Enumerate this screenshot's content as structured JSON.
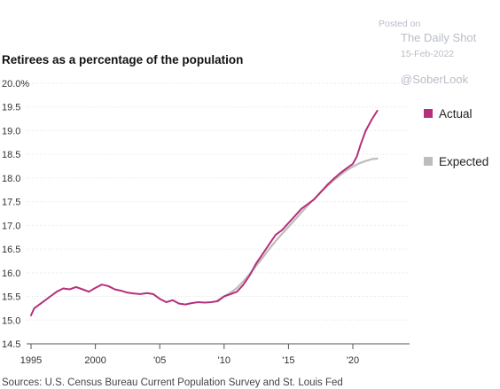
{
  "watermark": {
    "posted_on": "Posted on",
    "site": "The Daily Shot",
    "date": "15-Feb-2022",
    "handle": "@SoberLook"
  },
  "source": "Sources: U.S. Census Bureau Current Population Survey and St. Louis Fed",
  "colors": {
    "actual": "#b5307b",
    "expected": "#bdbdbd",
    "grid": "#e2e2e2"
  },
  "chart_data": {
    "type": "line",
    "title": "Retirees as a percentage of the population",
    "xlabel": "",
    "ylabel": "",
    "xlim": [
      1995,
      2022
    ],
    "ylim": [
      14.5,
      20.0
    ],
    "y_ticks": [
      {
        "v": 20.0,
        "label": "20.0%"
      },
      {
        "v": 19.5,
        "label": "19.5"
      },
      {
        "v": 19.0,
        "label": "19.0"
      },
      {
        "v": 18.5,
        "label": "18.5"
      },
      {
        "v": 18.0,
        "label": "18.0"
      },
      {
        "v": 17.5,
        "label": "17.5"
      },
      {
        "v": 17.0,
        "label": "17.0"
      },
      {
        "v": 16.5,
        "label": "16.5"
      },
      {
        "v": 16.0,
        "label": "16.0"
      },
      {
        "v": 15.5,
        "label": "15.5"
      },
      {
        "v": 15.0,
        "label": "15.0"
      },
      {
        "v": 14.5,
        "label": "14.5"
      }
    ],
    "x_ticks": [
      {
        "v": 1995,
        "label": "1995"
      },
      {
        "v": 2000,
        "label": "2000"
      },
      {
        "v": 2005,
        "label": "'05"
      },
      {
        "v": 2010,
        "label": "'10"
      },
      {
        "v": 2015,
        "label": "'15"
      },
      {
        "v": 2020,
        "label": "'20"
      }
    ],
    "grid": true,
    "legend": "right",
    "series": [
      {
        "name": "Actual",
        "color": "#b5307b",
        "x": [
          1995.0,
          1995.25,
          1995.6,
          1996.0,
          1996.5,
          1997.0,
          1997.5,
          1998.0,
          1998.5,
          1999.0,
          1999.5,
          2000.0,
          2000.5,
          2001.0,
          2001.5,
          2002.0,
          2002.5,
          2003.0,
          2003.5,
          2004.0,
          2004.5,
          2005.0,
          2005.5,
          2006.0,
          2006.5,
          2007.0,
          2007.5,
          2008.0,
          2008.5,
          2009.0,
          2009.5,
          2010.0,
          2010.5,
          2011.0,
          2011.5,
          2012.0,
          2012.5,
          2013.0,
          2013.5,
          2014.0,
          2014.5,
          2015.0,
          2015.5,
          2016.0,
          2016.5,
          2017.0,
          2017.5,
          2018.0,
          2018.5,
          2019.0,
          2019.5,
          2020.0,
          2020.3,
          2020.6,
          2021.0,
          2021.5,
          2021.9
        ],
        "values": [
          15.1,
          15.25,
          15.32,
          15.4,
          15.5,
          15.6,
          15.67,
          15.65,
          15.7,
          15.65,
          15.6,
          15.68,
          15.75,
          15.72,
          15.65,
          15.62,
          15.58,
          15.56,
          15.55,
          15.57,
          15.55,
          15.45,
          15.38,
          15.42,
          15.35,
          15.33,
          15.36,
          15.38,
          15.37,
          15.38,
          15.4,
          15.5,
          15.55,
          15.6,
          15.75,
          15.95,
          16.2,
          16.4,
          16.6,
          16.8,
          16.9,
          17.05,
          17.2,
          17.35,
          17.45,
          17.55,
          17.7,
          17.85,
          17.98,
          18.1,
          18.2,
          18.3,
          18.45,
          18.7,
          19.0,
          19.25,
          19.42
        ]
      },
      {
        "name": "Expected",
        "color": "#bdbdbd",
        "x": [
          2009.5,
          2010.0,
          2010.5,
          2011.0,
          2011.5,
          2012.0,
          2012.5,
          2013.0,
          2013.5,
          2014.0,
          2014.5,
          2015.0,
          2015.5,
          2016.0,
          2016.5,
          2017.0,
          2017.5,
          2018.0,
          2018.5,
          2019.0,
          2019.5,
          2020.0,
          2020.5,
          2021.0,
          2021.5,
          2021.9
        ],
        "values": [
          15.42,
          15.5,
          15.58,
          15.68,
          15.82,
          15.98,
          16.15,
          16.32,
          16.5,
          16.67,
          16.82,
          16.97,
          17.12,
          17.27,
          17.42,
          17.56,
          17.7,
          17.83,
          17.95,
          18.06,
          18.16,
          18.24,
          18.31,
          18.36,
          18.4,
          18.41
        ]
      }
    ]
  }
}
